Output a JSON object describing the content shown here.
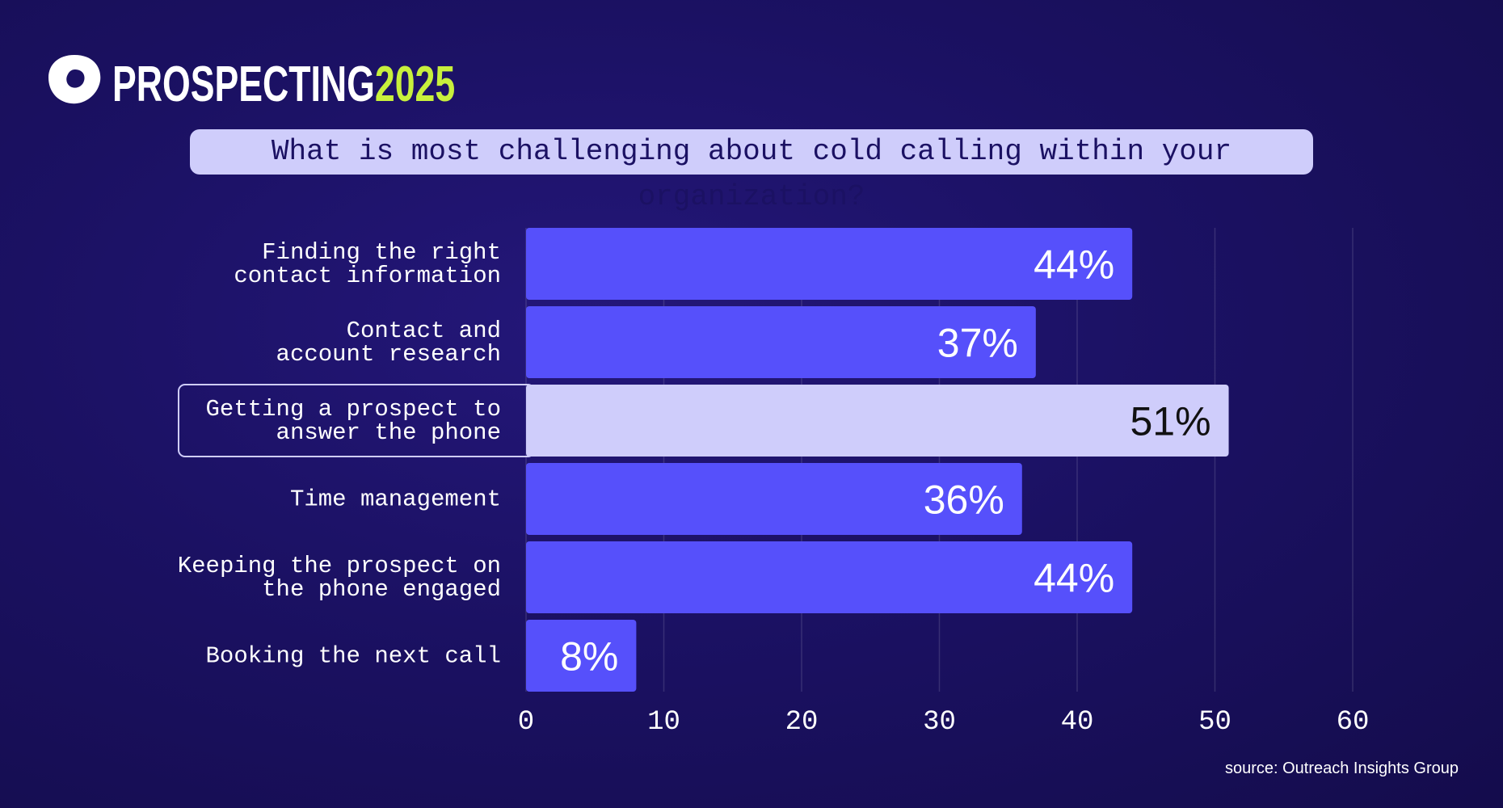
{
  "header": {
    "brand": "PROSPECTING",
    "brand_year": "2025"
  },
  "chart_data": {
    "type": "bar",
    "orientation": "horizontal",
    "title": "What is most challenging about cold calling within your organization?",
    "categories": [
      "Finding the right\ncontact information",
      "Contact and\naccount research",
      "Getting a prospect to\nanswer the phone",
      "Time management",
      "Keeping the prospect on\nthe phone engaged",
      "Booking the next call"
    ],
    "values": [
      44,
      37,
      51,
      36,
      44,
      8
    ],
    "value_labels": [
      "44%",
      "37%",
      "51%",
      "36%",
      "44%",
      "8%"
    ],
    "color": "#5650fb",
    "highlight_index": 2,
    "highlight_color": "#cfcdfb",
    "xlim": [
      0,
      60
    ],
    "xticks": [
      0,
      10,
      20,
      30,
      40,
      50,
      60
    ],
    "grid": true,
    "source": "source: Outreach Insights Group"
  }
}
